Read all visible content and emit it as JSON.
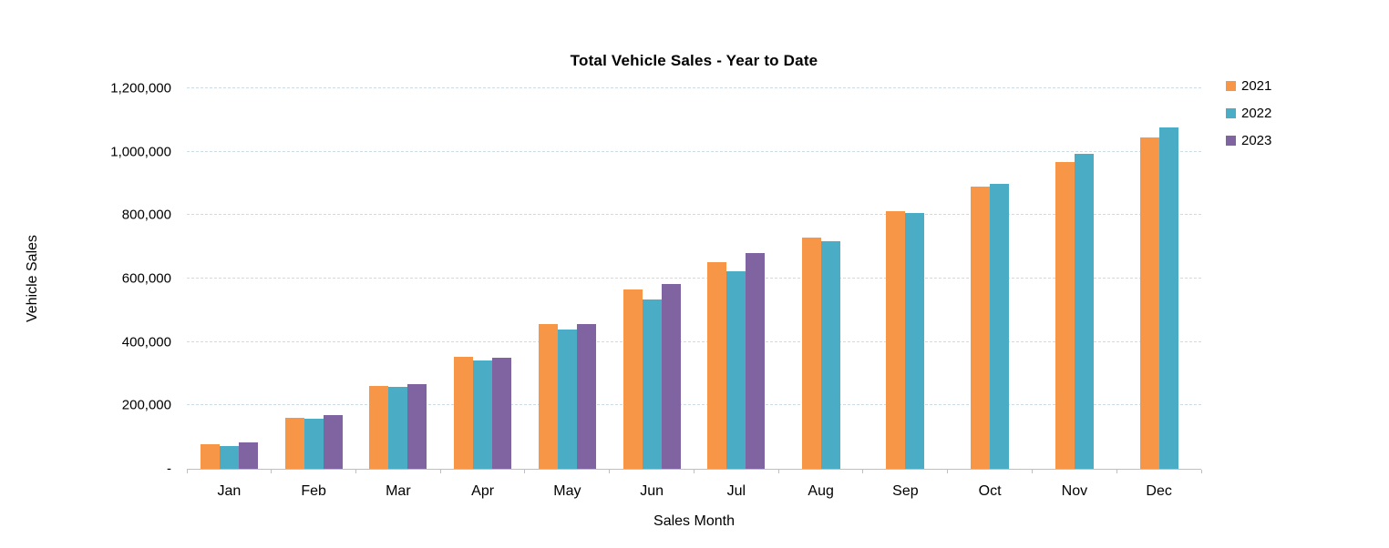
{
  "chart_data": {
    "type": "bar",
    "title": "Total Vehicle Sales - Year to Date",
    "xlabel": "Sales Month",
    "ylabel": "Vehicle Sales",
    "categories": [
      "Jan",
      "Feb",
      "Mar",
      "Apr",
      "May",
      "Jun",
      "Jul",
      "Aug",
      "Sep",
      "Oct",
      "Nov",
      "Dec"
    ],
    "series": [
      {
        "name": "2021",
        "color": "#F79646",
        "values": [
          78000,
          162000,
          260000,
          354000,
          456000,
          566000,
          653000,
          730000,
          813000,
          890000,
          968000,
          1046000
        ]
      },
      {
        "name": "2022",
        "color": "#4BACC6",
        "values": [
          73000,
          157000,
          257000,
          342000,
          438000,
          535000,
          623000,
          718000,
          808000,
          898000,
          993000,
          1078000
        ]
      },
      {
        "name": "2023",
        "color": "#8064A2",
        "values": [
          84000,
          170000,
          266000,
          351000,
          457000,
          583000,
          680000,
          null,
          null,
          null,
          null,
          null
        ]
      }
    ],
    "ylim": [
      0,
      1200000
    ],
    "ytick_interval": 200000,
    "ytick_labels": [
      "-",
      "200,000",
      "400,000",
      "600,000",
      "800,000",
      "1,000,000",
      "1,200,000"
    ],
    "grid": "horizontal-dashed",
    "legend_position": "right",
    "gridline_color": "#CBDCE6",
    "axis_line_color": "#BFBFBF"
  }
}
